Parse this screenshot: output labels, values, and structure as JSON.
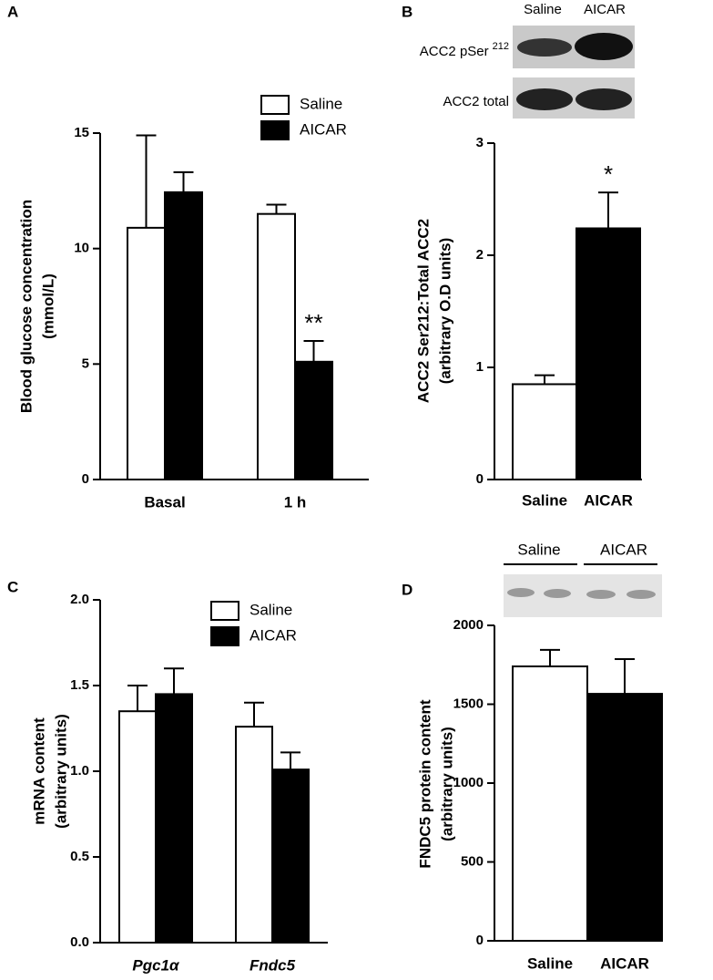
{
  "chart_data": [
    {
      "type": "bar",
      "panel": "A",
      "ylabel": [
        "Blood glucose concentration",
        "(mmol/L)"
      ],
      "categories": [
        "Basal",
        "1 h"
      ],
      "series": [
        {
          "name": "Saline",
          "color": "#ffffff",
          "values": [
            10.9,
            11.5
          ],
          "errors": [
            4.0,
            0.4
          ]
        },
        {
          "name": "AICAR",
          "color": "#000000",
          "values": [
            12.44,
            5.1
          ],
          "errors": [
            0.87,
            0.9
          ]
        }
      ],
      "ylim": [
        0,
        15
      ],
      "yticks": [
        0,
        5,
        10,
        15
      ],
      "annotation": "**"
    },
    {
      "type": "bar",
      "panel": "B",
      "ylabel": [
        "ACC2 Ser212:Total ACC2",
        "(arbitrary O.D units)"
      ],
      "categories": [
        "Saline",
        "AICAR"
      ],
      "values": [
        0.85,
        2.24
      ],
      "errors": [
        0.08,
        0.32
      ],
      "colors": [
        "#ffffff",
        "#000000"
      ],
      "ylim": [
        0,
        3
      ],
      "yticks": [
        0,
        1,
        2,
        3
      ],
      "annotation": "*",
      "blot": {
        "columns": [
          "Saline",
          "AICAR"
        ],
        "rows": [
          {
            "text": "ACC2  pSer",
            "sup": "212"
          },
          {
            "text": "ACC2 total"
          }
        ]
      }
    },
    {
      "type": "bar",
      "panel": "C",
      "ylabel": [
        "mRNA content",
        "(arbitrary units)"
      ],
      "categories": [
        "Pgc1α",
        "Fndc5"
      ],
      "series": [
        {
          "name": "Saline",
          "color": "#ffffff",
          "values": [
            1.35,
            1.26
          ],
          "errors": [
            0.15,
            0.14
          ]
        },
        {
          "name": "AICAR",
          "color": "#000000",
          "values": [
            1.45,
            1.01
          ],
          "errors": [
            0.15,
            0.1
          ]
        }
      ],
      "ylim": [
        0,
        2
      ],
      "yticks": [
        {
          "value": 0,
          "label": "0.0"
        },
        0.5,
        {
          "value": 1,
          "label": "1.0"
        },
        1.5,
        {
          "value": 2,
          "label": "2.0"
        }
      ]
    },
    {
      "type": "bar",
      "panel": "D",
      "ylabel": [
        "FNDC5 protein content",
        "(arbitrary units)"
      ],
      "categories": [
        "Saline",
        "AICAR"
      ],
      "values": [
        1740,
        1566
      ],
      "errors": [
        105,
        220
      ],
      "colors": [
        "#ffffff",
        "#000000"
      ],
      "ylim": [
        0,
        2000
      ],
      "yticks": [
        0,
        500,
        1000,
        1500,
        2000
      ],
      "blot": {
        "columns": [
          "Saline",
          "AICAR"
        ]
      }
    }
  ]
}
